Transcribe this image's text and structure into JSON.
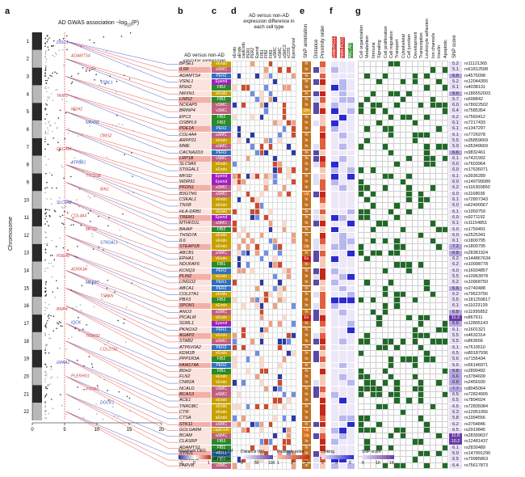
{
  "panels": {
    "a": "a",
    "b": "b",
    "c": "c",
    "d": "d",
    "e": "e",
    "f": "f",
    "g": "g"
  },
  "manhattan": {
    "title": "AD GWAS association −log",
    "title_sub": "10",
    "title_end": "(P)",
    "xlabel": "",
    "ylabel": "Chromosome",
    "xticks": [
      "0",
      "5",
      "10",
      "15",
      "20"
    ],
    "chromosomes": [
      "1",
      "2",
      "3",
      "4",
      "5",
      "6",
      "7",
      "8",
      "9",
      "10",
      "11",
      "12",
      "13",
      "14",
      "15",
      "16",
      "17",
      "18",
      "19",
      "20",
      "21",
      "22"
    ],
    "labeled_genes": [
      "DISC1",
      "ADAMTS4",
      "IL6R",
      "VSNL1",
      "TNIP1",
      "MSH2",
      "NRXN1",
      "LIMS2",
      "DSCAM",
      "ATP8B1",
      "TTC21B",
      "BIN1",
      "SLC9A9",
      "COL4A4",
      "MFSD",
      "ST6GAL1",
      "PDE4B",
      "ADRA1A",
      "MEF2C",
      "TSPAN",
      "BMP4",
      "IQCK",
      "TRIM32",
      "COL27A1",
      "GPAA1",
      "PLEKHG1",
      "PTPRC",
      "DOCK1",
      "SPI1",
      "SORL1",
      "PICALM",
      "SLC4A4",
      "ATP6V0A1",
      "PIK3CB",
      "MTHFD1L",
      "ADAMTS1",
      "STK11",
      "DSCAM",
      "ZNF184"
    ]
  },
  "header_b": "AD versus non-AD vascular expression maximum difference",
  "header_d": "AD versus non-AD expression difference in each cell type",
  "header_e": "SNP annotation",
  "header_f1": "Distance",
  "header_f2": "Proximity order",
  "header_f3": "Linking",
  "header_g_score": "SNP score",
  "celltype_headers": [
    "vEndo",
    "aEndo",
    "capEndo",
    "PER1",
    "PER2",
    "Epend",
    "FIB1",
    "FIB2",
    "FIB3",
    "aSMC",
    "vSMC",
    "aSMC2",
    "vCOS",
    "Ependymal"
  ],
  "linking_headers": [
    "Endo-PCCL",
    "meth-PCCL",
    "ABC-AD"
  ],
  "go_terms": [
    "Cell organization",
    "Metabolism",
    "Immune",
    "Signaling",
    "Cell proliferation",
    "Cell migration",
    "Transport",
    "Cytoskeletal",
    "Cell junction",
    "Development",
    "Transcription",
    "Leukocyte adhesion",
    "Ion channels",
    "Insulin",
    "Apoptotic"
  ],
  "rows": [
    {
      "gene": "BPSE1",
      "ct": "vEndo",
      "ctc": "#c7a000",
      "ann": "In",
      "score": "5.2",
      "snp": "rs11121365"
    },
    {
      "gene": "IL6R",
      "ct": "aSMC",
      "ctc": "#c06080",
      "ann": "In",
      "score": "5.1",
      "snp": "rs61812598"
    },
    {
      "gene": "ADAMTS4",
      "ct": "PER2",
      "ctc": "#3070c0",
      "ann": "In",
      "score": "6.8",
      "snp": "rs4575098"
    },
    {
      "gene": "VSNL1",
      "ct": "Epend",
      "ctc": "#a020c0",
      "ann": "In",
      "score": "5.2",
      "snp": "rs12044355"
    },
    {
      "gene": "MSH2",
      "ct": "FIB2",
      "ctc": "#2a8a2a",
      "ann": "In",
      "score": "6.1",
      "snp": "rs4038131"
    },
    {
      "gene": "NRXN1",
      "ct": "vEndo",
      "ctc": "#c7a000",
      "ann": "In",
      "score": "6.6",
      "snp": "rs186552003"
    },
    {
      "gene": "LIMS2",
      "ct": "FIB2",
      "ctc": "#2a8a2a",
      "ann": "In",
      "score": "5.7",
      "snp": "rs698842"
    },
    {
      "gene": "NCKAP5",
      "ct": "vSMC",
      "ctc": "#c06080",
      "ann": "In",
      "score": "6.0",
      "snp": "rs78022502"
    },
    {
      "gene": "BRINP4",
      "ct": "vSMC",
      "ctc": "#c06080",
      "ann": "Dn",
      "score": "6.4",
      "snp": "rs7585354"
    },
    {
      "gene": "EPC2",
      "ct": "FIB2",
      "ctc": "#2a8a2a",
      "ann": "In",
      "score": "6.2",
      "snp": "rs7560412"
    },
    {
      "gene": "OSBPL6",
      "ct": "FIB2",
      "ctc": "#2a8a2a",
      "ann": "In",
      "score": "6.1",
      "snp": "rs7217433"
    },
    {
      "gene": "PDE1A",
      "ct": "PER2",
      "ctc": "#3070c0",
      "ann": "In",
      "score": "6.1",
      "snp": "rs1347297"
    },
    {
      "gene": "COL4A4",
      "ct": "aSMC",
      "ctc": "#c06080",
      "ann": "In",
      "score": "6.1",
      "snp": "rs7726978"
    },
    {
      "gene": "ARPP21",
      "ct": "vEndo",
      "ctc": "#c7a000",
      "ann": "In",
      "score": "5.5",
      "snp": "rs35859669"
    },
    {
      "gene": "MME",
      "ct": "aSMC",
      "ctc": "#c06080",
      "ann": "In",
      "score": "5.9",
      "snp": "rs35349669"
    },
    {
      "gene": "CACNA2D3",
      "ct": "PER2",
      "ctc": "#3070c0",
      "ann": "In",
      "score": "6.6",
      "snp": "rs9832461"
    },
    {
      "gene": "LRP1B",
      "ct": "vSMC",
      "ctc": "#c06080",
      "ann": "In",
      "score": "6.1",
      "snp": "rs7431992"
    },
    {
      "gene": "SLC9A9",
      "ct": "vEndo",
      "ctc": "#c7a000",
      "ann": "In",
      "score": "6.0",
      "snp": "rs7603964"
    },
    {
      "gene": "ST6GAL1",
      "ct": "vEndo",
      "ctc": "#c7a000",
      "ann": "In",
      "score": "6.0",
      "snp": "rs17636071"
    },
    {
      "gene": "MFSD",
      "ct": "Epend",
      "ctc": "#a020c0",
      "ann": "In",
      "score": "6.1",
      "snp": "rs3936289"
    },
    {
      "gene": "WDR91",
      "ct": "Epend",
      "ctc": "#a020c0",
      "ann": "In",
      "score": "6.0",
      "snp": "rs149799089"
    },
    {
      "gene": "PFDN1",
      "ct": "aSMC",
      "ctc": "#c06080",
      "ann": "In",
      "score": "6.2",
      "snp": "rs116300850"
    },
    {
      "gene": "B3GTM1",
      "ct": "aSMC",
      "ctc": "#c06080",
      "ann": "Up",
      "score": "6.0",
      "snp": "rs1168036"
    },
    {
      "gene": "CSKAL1",
      "ct": "vEndo",
      "ctc": "#c7a000",
      "ann": "In",
      "score": "6.1",
      "snp": "rs72807343"
    },
    {
      "gene": "TNXB",
      "ct": "vEndo",
      "ctc": "#c7a000",
      "ann": "In",
      "score": "6.0",
      "snp": "rs62400067"
    },
    {
      "gene": "HLA-DRB1",
      "ct": "vEndo",
      "ctc": "#c7a000",
      "ann": "In",
      "score": "6.1",
      "snp": "rs1959759"
    },
    {
      "gene": "TREM1",
      "ct": "Epend",
      "ctc": "#a020c0",
      "ann": "In",
      "score": "6.0",
      "snp": "rs9271192"
    },
    {
      "gene": "MTHFD1L",
      "ct": "aSMC",
      "ctc": "#c06080",
      "ann": "In",
      "score": "6.1",
      "snp": "rs11154851"
    },
    {
      "gene": "BAIAP",
      "ct": "FIB2",
      "ctc": "#2a8a2a",
      "ann": "In",
      "score": "6.0",
      "snp": "rs1759491"
    },
    {
      "gene": "THSD7A",
      "ct": "vEndo",
      "ctc": "#c7a000",
      "ann": "In",
      "score": "6.0",
      "snp": "rs2525341"
    },
    {
      "gene": "IL6",
      "ct": "vEndo",
      "ctc": "#c7a000",
      "ann": "In",
      "score": "6.1",
      "snp": "rs1800795"
    },
    {
      "gene": "STEAP1B",
      "ct": "vEndo",
      "ctc": "#c7a000",
      "ann": "Up",
      "score": "7.2",
      "snp": "rs1800795"
    },
    {
      "gene": "ABCB1",
      "ct": "aSMC",
      "ctc": "#c06080",
      "ann": "In",
      "score": "6.8",
      "snp": "rs28381924"
    },
    {
      "gene": "EPHA1",
      "ct": "vEndo",
      "ctc": "#c7a000",
      "ann": "Ex",
      "score": "6.2",
      "snp": "rs144867634"
    },
    {
      "gene": "NDUFAF6",
      "ct": "FIB1",
      "ctc": "#2a8a2a",
      "ann": "In",
      "score": "6.2",
      "snp": "rs10098778"
    },
    {
      "gene": "KCNQ3",
      "ct": "PER2",
      "ctc": "#3070c0",
      "ann": "In",
      "score": "6.0",
      "snp": "rs16934857"
    },
    {
      "gene": "PLIN2",
      "ct": "vEndo",
      "ctc": "#c7a000",
      "ann": "In",
      "score": "5.5",
      "snp": "rs10963978"
    },
    {
      "gene": "LINGO2",
      "ct": "PER1",
      "ctc": "#3070c0",
      "ann": "In",
      "score": "6.2",
      "snp": "rs10968750"
    },
    {
      "gene": "ABCA1",
      "ct": "PER2",
      "ctc": "#3070c0",
      "ann": "In",
      "score": "6.6",
      "snp": "rs2740488"
    },
    {
      "gene": "COL27A1",
      "ct": "vEndo",
      "ctc": "#c7a000",
      "ann": "In",
      "score": "5.2",
      "snp": "rs79623756"
    },
    {
      "gene": "PBX3",
      "ct": "FIB3",
      "ctc": "#2a8a2a",
      "ann": "In",
      "score": "5.5",
      "snp": "rs181259817"
    },
    {
      "gene": "SPON1",
      "ct": "vEndo",
      "ctc": "#c7a000",
      "ann": "In",
      "score": "6.1",
      "snp": "rs11023139"
    },
    {
      "gene": "ANO3",
      "ct": "aSMC",
      "ctc": "#c06080",
      "ann": "In",
      "score": "6.8",
      "snp": "rs11995852"
    },
    {
      "gene": "PICALM",
      "ct": "vEndo",
      "ctc": "#c7a000",
      "ann": "Ex",
      "score": "11.2",
      "snp": "rs867611"
    },
    {
      "gene": "SORL1",
      "ct": "Epend",
      "ctc": "#a020c0",
      "ann": "In",
      "score": "6.6",
      "snp": "rs12805143"
    },
    {
      "gene": "PKNOX2",
      "ct": "PER1",
      "ctc": "#3070c0",
      "ann": "In",
      "score": "6.1",
      "snp": "rs1601321"
    },
    {
      "gene": "AGAP2",
      "ct": "vEndo",
      "ctc": "#c7a000",
      "ann": "In",
      "score": "5.5",
      "snp": "rs4632314"
    },
    {
      "gene": "STAB2",
      "ct": "aSMC",
      "ctc": "#c06080",
      "ann": "In",
      "score": "5.5",
      "snp": "rs863656"
    },
    {
      "gene": "ATP6V0A2",
      "ct": "PER2",
      "ctc": "#3070c0",
      "ann": "In",
      "score": "6.1",
      "snp": "rs7619510"
    },
    {
      "gene": "KDM1B",
      "ct": "vEndo",
      "ctc": "#c7a000",
      "ann": "In",
      "score": "6.5",
      "snp": "rs80187936"
    },
    {
      "gene": "PPP1R3A",
      "ct": "FIB2",
      "ctc": "#2a8a2a",
      "ann": "In",
      "score": "5.6",
      "snp": "rs7155434"
    },
    {
      "gene": "FAM174A",
      "ct": "PER2",
      "ctc": "#3070c0",
      "ann": "In",
      "score": "5.5",
      "snp": "rs56146971"
    },
    {
      "gene": "BDH2",
      "ct": "FIB1",
      "ctc": "#2a8a2a",
      "ann": "In",
      "score": "6.8",
      "snp": "rs2899492"
    },
    {
      "gene": "FLN2",
      "ct": "vEndo",
      "ctc": "#c7a000",
      "ann": "In",
      "score": "6.6",
      "snp": "rs3784609"
    },
    {
      "gene": "CNR2A",
      "ct": "vEndo",
      "ctc": "#c7a000",
      "ann": "In",
      "score": "6.8",
      "snp": "rs2456930"
    },
    {
      "gene": "NCALD",
      "ct": "vSMC",
      "ctc": "#c06080",
      "ann": "In",
      "score": "7.7",
      "snp": "rs8045064"
    },
    {
      "gene": "BCAS3",
      "ct": "aSMC",
      "ctc": "#c06080",
      "ann": "In",
      "score": "6.5",
      "snp": "rs72824905"
    },
    {
      "gene": "ACE1",
      "ct": "vEndo",
      "ctc": "#c7a000",
      "ann": "In",
      "score": "6.5",
      "snp": "rs7894924"
    },
    {
      "gene": "TNROBC",
      "ct": "vEndo",
      "ctc": "#c7a000",
      "ann": "In",
      "score": "6.5",
      "snp": "rs72835084"
    },
    {
      "gene": "CTIF",
      "ct": "vEndo",
      "ctc": "#c7a000",
      "ann": "In",
      "score": "6.3",
      "snp": "rs12951056"
    },
    {
      "gene": "CTSA",
      "ct": "aEndo",
      "ctc": "#c7a000",
      "ann": "In",
      "score": "5.8",
      "snp": "rs1994556"
    },
    {
      "gene": "STK11",
      "ct": "aSMC",
      "ctc": "#c06080",
      "ann": "In",
      "score": "6.2",
      "snp": "rs3764846"
    },
    {
      "gene": "GOLGA8M",
      "ct": "capEndo",
      "ctc": "#c7a000",
      "ann": "Up",
      "score": "6.5",
      "snp": "rs2919845"
    },
    {
      "gene": "BCAM",
      "ct": "aSMC",
      "ctc": "#c06080",
      "ann": "Up",
      "score": "11.8",
      "snp": "rs28399637"
    },
    {
      "gene": "CLASRP",
      "ct": "FIB3",
      "ctc": "#2a8a2a",
      "ann": "In",
      "score": "10.2",
      "snp": "rs12481437"
    },
    {
      "gene": "ADAMTS1",
      "ct": "FIB1",
      "ctc": "#2a8a2a",
      "ann": "In",
      "score": "6.1",
      "snp": "rs2830489"
    },
    {
      "gene": "SYNJ1",
      "ct": "PER1",
      "ctc": "#3070c0",
      "ann": "In",
      "score": "6.0",
      "snp": "rs147991290"
    },
    {
      "gene": "COL18A1",
      "ct": "FIB1",
      "ctc": "#2a8a2a",
      "ann": "In",
      "score": "6.5",
      "snp": "rs79985863"
    },
    {
      "gene": "PARVB",
      "ct": "vSMC",
      "ctc": "#c06080",
      "ann": "In",
      "score": "6.4",
      "snp": "rs75617873"
    }
  ],
  "legends": {
    "b_title": "Maximum DEG",
    "b_ticks": [
      "−1",
      "0",
      "1"
    ],
    "c_title": "Cell type of maximum difference",
    "d_title": "Distance (kb)",
    "d_ticks": [
      "0",
      "50",
      "100"
    ],
    "po_title": "Proximity order",
    "po_ticks": [
      "1",
      "2",
      "3"
    ],
    "lk_title": "Linking",
    "lk_ticks": [
      "0",
      "3",
      "6"
    ],
    "sc_title": "SNP score",
    "sc_ticks": [
      "5",
      "10",
      "15"
    ],
    "ann_title": "SNP annotation",
    "ann_items": [
      "Exon",
      "First intron",
      "Other intron",
      "3' UTR",
      "Immediately upstream",
      "Immediately downstream",
      "Distal, linked",
      "Distal, not linked"
    ],
    "ann_codes": [
      "Ex",
      "In",
      "In",
      "3U",
      "Up",
      "Dn",
      "DL",
      "DN"
    ]
  }
}
